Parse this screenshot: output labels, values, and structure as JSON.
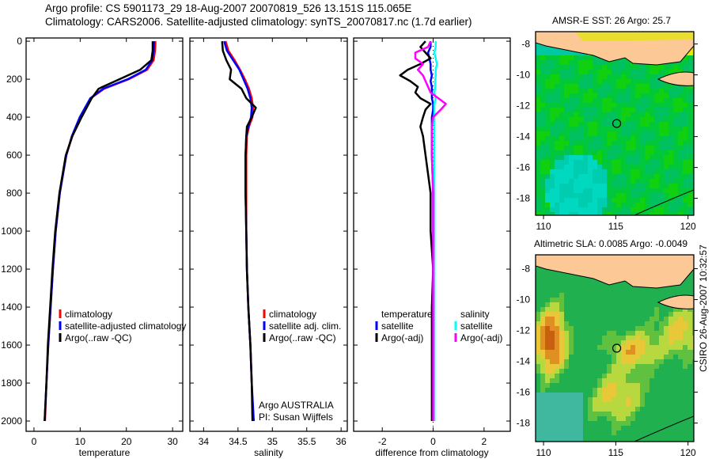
{
  "title": {
    "line1": "Argo profile: CS 5901173_29 18-Aug-2007 20070819_526 13.151S 115.065E",
    "line2": "Climatology: CARS2006. Satellite-adjusted climatology: synTS_20070817.nc (1.7d earlier)"
  },
  "side_label": "CSIRO 26-Aug-2007 10:32:57",
  "colors": {
    "climatology": "#ff0000",
    "satellite": "#0000ff",
    "argo": "#000000",
    "sat_sal": "#00ffff",
    "argo_sal": "#ff00ff",
    "land": "#fcc896",
    "ocean": "#00cc22"
  },
  "chart_data": [
    {
      "type": "line",
      "xlabel": "temperature",
      "ylabel": "",
      "xlim": [
        -1.7,
        32.2
      ],
      "ylim": [
        2054,
        -17
      ],
      "xticks": [
        "0",
        "10",
        "20",
        "30"
      ],
      "xtick_values": [
        0,
        10,
        20,
        30
      ],
      "yticks": [
        "0",
        "200",
        "400",
        "600",
        "800",
        "1000",
        "1200",
        "1400",
        "1600",
        "1800",
        "2000"
      ],
      "ytick_values": [
        0,
        200,
        400,
        600,
        800,
        1000,
        1200,
        1400,
        1600,
        1800,
        2000
      ],
      "depth": [
        0,
        50,
        100,
        150,
        200,
        250,
        300,
        400,
        500,
        600,
        800,
        1000,
        1200,
        1400,
        1600,
        1800,
        2000
      ],
      "series": [
        {
          "name": "climatology",
          "legend": "climatology",
          "color": "#ff0000",
          "values": [
            26.3,
            26.2,
            25.9,
            24.5,
            20.5,
            15.2,
            12.3,
            10.0,
            8.3,
            7.0,
            5.6,
            4.7,
            4.1,
            3.6,
            3.1,
            2.7,
            2.4
          ]
        },
        {
          "name": "satellite",
          "legend": "satellite-adjusted climatology",
          "color": "#0000ff",
          "values": [
            26.0,
            25.9,
            25.6,
            24.2,
            20.3,
            15.0,
            12.2,
            9.9,
            8.2,
            7.0,
            5.6,
            4.7,
            4.1,
            3.6,
            3.1,
            2.7,
            2.3
          ]
        },
        {
          "name": "argo",
          "legend": "Argo(..raw -QC)",
          "color": "#000000",
          "values": [
            25.7,
            25.7,
            25.4,
            23.0,
            18.5,
            14.0,
            12.5,
            10.3,
            8.3,
            6.9,
            5.5,
            4.6,
            4.0,
            3.5,
            3.0,
            2.7,
            2.3
          ]
        }
      ]
    },
    {
      "type": "line",
      "xlabel": "salinity",
      "ylabel": "",
      "xlim": [
        33.8,
        36.09
      ],
      "ylim": [
        2054,
        -17
      ],
      "xticks": [
        "34",
        "34.5",
        "35",
        "35.5",
        "36"
      ],
      "xtick_values": [
        34,
        34.5,
        35,
        35.5,
        36
      ],
      "depth": [
        0,
        50,
        100,
        150,
        200,
        250,
        300,
        350,
        400,
        450,
        500,
        600,
        800,
        1000,
        1200,
        1400,
        1600,
        1800,
        2000
      ],
      "series": [
        {
          "name": "climatology",
          "legend": "climatology",
          "color": "#ff0000",
          "values": [
            34.32,
            34.36,
            34.45,
            34.53,
            34.6,
            34.66,
            34.7,
            34.72,
            34.71,
            34.66,
            34.63,
            34.62,
            34.62,
            34.62,
            34.63,
            34.65,
            34.68,
            34.7,
            34.72
          ]
        },
        {
          "name": "satellite",
          "legend": "satellite adj. clim.",
          "color": "#0000ff",
          "values": [
            34.3,
            34.34,
            34.43,
            34.52,
            34.58,
            34.64,
            34.68,
            34.7,
            34.69,
            34.65,
            34.62,
            34.61,
            34.61,
            34.62,
            34.63,
            34.65,
            34.68,
            34.7,
            34.73
          ]
        },
        {
          "name": "argo",
          "legend": "Argo(..raw -QC)",
          "color": "#000000",
          "values": [
            34.27,
            34.28,
            34.33,
            34.4,
            34.38,
            34.55,
            34.62,
            34.76,
            34.7,
            34.63,
            34.62,
            34.61,
            34.61,
            34.62,
            34.63,
            34.65,
            34.68,
            34.7,
            34.71
          ]
        }
      ],
      "annotation": [
        "Argo AUSTRALIA",
        "PI: Susan Wijffels"
      ]
    },
    {
      "type": "line",
      "xlabel": "difference from climatology",
      "ylabel": "",
      "xlim": [
        -3.125,
        3.03
      ],
      "ylim": [
        2054,
        -17
      ],
      "xticks": [
        "-2",
        "0",
        "2"
      ],
      "xtick_values": [
        -2,
        0,
        2
      ],
      "legend_headers": [
        "temperature",
        "salinity"
      ],
      "depth": [
        0,
        30,
        60,
        90,
        120,
        150,
        180,
        210,
        240,
        270,
        300,
        330,
        360,
        400,
        450,
        500,
        600,
        800,
        1000,
        1200,
        1400,
        1600,
        1800,
        2000
      ],
      "series": [
        {
          "name": "temp-satellite",
          "legend": "satellite",
          "color": "#0000ff",
          "values": [
            -0.1,
            -0.1,
            -0.2,
            -0.15,
            -0.1,
            -0.1,
            -0.05,
            -0.1,
            -0.05,
            -0.05,
            -0.05,
            0.0,
            0.0,
            -0.05,
            -0.05,
            -0.05,
            -0.05,
            0.0,
            0.0,
            0.0,
            0.0,
            0.0,
            0.0,
            0.0
          ]
        },
        {
          "name": "temp-argo",
          "legend": "Argo(-adj)",
          "color": "#000000",
          "values": [
            -0.3,
            -0.5,
            -0.3,
            -0.1,
            -0.5,
            -1.0,
            -1.3,
            -0.9,
            -0.6,
            -0.7,
            -0.5,
            -0.1,
            -0.3,
            -0.4,
            -0.5,
            -0.4,
            -0.3,
            -0.1,
            -0.1,
            0.0,
            -0.05,
            -0.05,
            -0.05,
            -0.05
          ]
        },
        {
          "name": "sal-satellite",
          "legend": "satellite",
          "color": "#00ffff",
          "values": [
            0.1,
            0.1,
            0.05,
            0.1,
            0.15,
            0.1,
            0.1,
            0.08,
            0.08,
            0.05,
            0.1,
            0.05,
            0.05,
            0.05,
            0.05,
            0.05,
            0.05,
            0.05,
            0.05,
            0.05,
            0.05,
            0.05,
            0.05,
            0.05
          ]
        },
        {
          "name": "sal-argo",
          "legend": "Argo(-adj)",
          "color": "#ff00ff",
          "values": [
            -0.1,
            -0.2,
            -0.7,
            -0.7,
            -0.4,
            -0.6,
            -0.4,
            -0.3,
            -0.2,
            -0.1,
            0.2,
            0.5,
            0.3,
            0.0,
            -0.05,
            -0.05,
            -0.05,
            0.0,
            0.0,
            0.0,
            0.0,
            0.0,
            0.0,
            0.0
          ]
        }
      ]
    }
  ],
  "maps": [
    {
      "title": "AMSR-E SST: 26 Argo: 25.7",
      "lon_ticks": [
        "110",
        "115",
        "120"
      ],
      "lat_ticks": [
        "-8",
        "-10",
        "-12",
        "-14",
        "-16",
        "-18"
      ],
      "argo_lon": 115.065,
      "argo_lat": -13.151
    },
    {
      "title": "Altimetric SLA: 0.0085 Argo: -0.0049",
      "lon_ticks": [
        "110",
        "115",
        "120"
      ],
      "lat_ticks": [
        "-8",
        "-10",
        "-12",
        "-14",
        "-16",
        "-18"
      ],
      "argo_lon": 115.065,
      "argo_lat": -13.151
    }
  ]
}
